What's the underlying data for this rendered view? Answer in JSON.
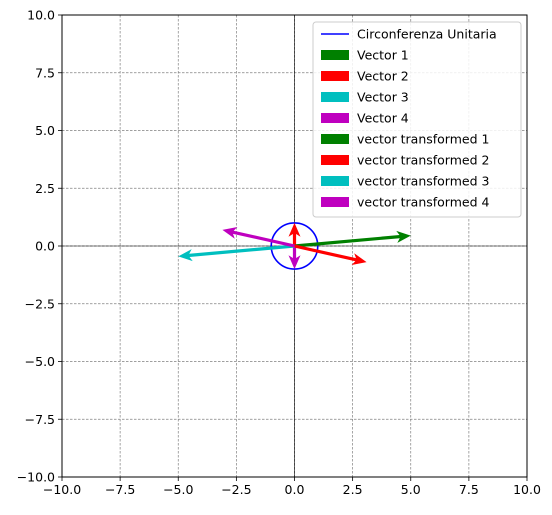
{
  "chart_data": {
    "type": "quiver",
    "xlim": [
      -10,
      10
    ],
    "ylim": [
      -10,
      10
    ],
    "xticks": [
      -10.0,
      -7.5,
      -5.0,
      -2.5,
      0.0,
      2.5,
      5.0,
      7.5,
      10.0
    ],
    "yticks": [
      -10.0,
      -7.5,
      -5.0,
      -2.5,
      0.0,
      2.5,
      5.0,
      7.5,
      10.0
    ],
    "xtick_labels": [
      "−10.0",
      "−7.5",
      "−5.0",
      "−2.5",
      "0.0",
      "2.5",
      "5.0",
      "7.5",
      "10.0"
    ],
    "ytick_labels": [
      "−10.0",
      "−7.5",
      "−5.0",
      "−2.5",
      "0.0",
      "2.5",
      "5.0",
      "7.5",
      "10.0"
    ],
    "grid": true,
    "legend_position": "top-right",
    "circle": {
      "name": "Circonferenza Unitaria",
      "center": [
        0,
        0
      ],
      "radius": 1,
      "color": "#0000ff"
    },
    "vectors": [
      {
        "name": "Vector 1",
        "color": "#008000",
        "x": [
          0,
          0
        ],
        "y": [
          0,
          0
        ]
      },
      {
        "name": "Vector 2",
        "color": "#ff0000",
        "x": [
          0,
          0
        ],
        "y": [
          0,
          1
        ]
      },
      {
        "name": "Vector 3",
        "color": "#00bfbf",
        "x": [
          0,
          0
        ],
        "y": [
          0,
          0
        ]
      },
      {
        "name": "Vector 4",
        "color": "#bf00bf",
        "x": [
          0,
          0
        ],
        "y": [
          0,
          -1
        ]
      },
      {
        "name": "vector transformed 1",
        "color": "#008000",
        "x": [
          0,
          5
        ],
        "y": [
          0,
          0.45
        ]
      },
      {
        "name": "vector transformed 2",
        "color": "#ff0000",
        "x": [
          0,
          3.1
        ],
        "y": [
          0,
          -0.7
        ]
      },
      {
        "name": "vector transformed 3",
        "color": "#00bfbf",
        "x": [
          0,
          -5
        ],
        "y": [
          0,
          -0.45
        ]
      },
      {
        "name": "vector transformed 4",
        "color": "#bf00bf",
        "x": [
          0,
          -3.1
        ],
        "y": [
          0,
          0.7
        ]
      }
    ]
  }
}
